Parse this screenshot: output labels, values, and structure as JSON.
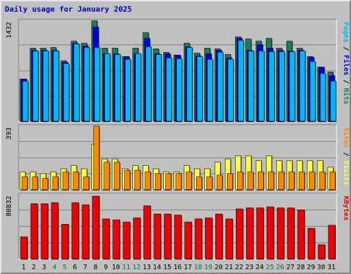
{
  "title": "Daily usage for January 2025",
  "colors": {
    "hits": "#1b7c5f",
    "files": "#0000e0",
    "pages": "#00b8f8",
    "visits": "#ffff40",
    "sites": "#ff8800",
    "kbytes": "#ee0000",
    "weekend_label": "#107040",
    "weekday_label": "#000000",
    "separator": "#000000"
  },
  "chart_data": [
    {
      "type": "bar",
      "name": "hits-files-pages",
      "ymax_label": "1432",
      "ylim": [
        0,
        1432
      ],
      "side_labels": [
        {
          "text": "Pages",
          "color": "#00b8f8"
        },
        {
          "text": " / ",
          "color": "#000000"
        },
        {
          "text": "Files",
          "color": "#0000e0"
        },
        {
          "text": " / ",
          "color": "#000000"
        },
        {
          "text": "Hits",
          "color": "#1b7c5f"
        }
      ],
      "categories": [
        "1",
        "2",
        "3",
        "4",
        "5",
        "6",
        "7",
        "8",
        "9",
        "10",
        "11",
        "12",
        "13",
        "14",
        "15",
        "16",
        "17",
        "18",
        "19",
        "20",
        "21",
        "22",
        "23",
        "24",
        "25",
        "26",
        "27",
        "28",
        "29",
        "30",
        "31"
      ],
      "series": [
        {
          "name": "Hits",
          "values": [
            600,
            1040,
            1040,
            1050,
            860,
            1140,
            1110,
            1430,
            1040,
            1040,
            920,
            1040,
            1260,
            1030,
            980,
            940,
            1110,
            970,
            1040,
            1030,
            950,
            1200,
            1170,
            1140,
            1180,
            1040,
            1140,
            1040,
            920,
            770,
            700
          ]
        },
        {
          "name": "Files",
          "values": [
            600,
            1010,
            1010,
            1010,
            840,
            1110,
            1070,
            1340,
            960,
            960,
            920,
            960,
            1180,
            960,
            960,
            940,
            1060,
            930,
            960,
            1010,
            900,
            1180,
            1010,
            1090,
            1040,
            1010,
            1000,
            1010,
            910,
            770,
            650
          ]
        },
        {
          "name": "Pages",
          "values": [
            570,
            1000,
            1000,
            1000,
            820,
            1100,
            1050,
            1050,
            960,
            950,
            880,
            960,
            1060,
            950,
            900,
            890,
            1050,
            920,
            880,
            980,
            880,
            1150,
            1000,
            1000,
            990,
            990,
            990,
            1000,
            850,
            680,
            570
          ]
        }
      ]
    },
    {
      "type": "bar",
      "name": "visits-sites",
      "ymax_label": "393",
      "ylim": [
        0,
        393
      ],
      "side_labels": [
        {
          "text": "Sites",
          "color": "#ff8800"
        },
        {
          "text": " / ",
          "color": "#000000"
        },
        {
          "text": "Visits",
          "color": "#ffff40"
        }
      ],
      "categories": [
        "1",
        "2",
        "3",
        "4",
        "5",
        "6",
        "7",
        "8",
        "9",
        "10",
        "11",
        "12",
        "13",
        "14",
        "15",
        "16",
        "17",
        "18",
        "19",
        "20",
        "21",
        "22",
        "23",
        "24",
        "25",
        "26",
        "27",
        "28",
        "29",
        "30",
        "31"
      ],
      "series": [
        {
          "name": "Visits",
          "values": [
            110,
            110,
            100,
            110,
            130,
            150,
            130,
            280,
            190,
            190,
            130,
            150,
            150,
            130,
            110,
            110,
            150,
            130,
            130,
            170,
            190,
            210,
            210,
            180,
            210,
            180,
            180,
            180,
            180,
            180,
            140
          ]
        },
        {
          "name": "Sites",
          "values": [
            80,
            80,
            70,
            80,
            110,
            110,
            80,
            393,
            170,
            170,
            120,
            120,
            110,
            100,
            100,
            100,
            110,
            80,
            80,
            90,
            100,
            110,
            110,
            110,
            110,
            110,
            110,
            110,
            110,
            110,
            110
          ]
        }
      ]
    },
    {
      "type": "bar",
      "name": "kbytes",
      "ymax_label": "80832",
      "ylim": [
        0,
        80832
      ],
      "side_labels": [
        {
          "text": "KBytes",
          "color": "#ee0000"
        }
      ],
      "categories": [
        "1",
        "2",
        "3",
        "4",
        "5",
        "6",
        "7",
        "8",
        "9",
        "10",
        "11",
        "12",
        "13",
        "14",
        "15",
        "16",
        "17",
        "18",
        "19",
        "20",
        "21",
        "22",
        "23",
        "24",
        "25",
        "26",
        "27",
        "28",
        "29",
        "30",
        "31"
      ],
      "series": [
        {
          "name": "KBytes",
          "values": [
            27700,
            69300,
            69300,
            70600,
            43600,
            70600,
            68000,
            78800,
            50300,
            49000,
            46400,
            51600,
            66700,
            56400,
            56400,
            55100,
            46400,
            50300,
            51600,
            56400,
            50300,
            62800,
            64100,
            64100,
            65400,
            64100,
            64100,
            61500,
            38500,
            17900,
            42300
          ]
        }
      ]
    }
  ],
  "x_labels": [
    {
      "text": "1",
      "weekend": false
    },
    {
      "text": "2",
      "weekend": false
    },
    {
      "text": "3",
      "weekend": false
    },
    {
      "text": "4",
      "weekend": true
    },
    {
      "text": "5",
      "weekend": true
    },
    {
      "text": "6",
      "weekend": false
    },
    {
      "text": "7",
      "weekend": false
    },
    {
      "text": "8",
      "weekend": false
    },
    {
      "text": "9",
      "weekend": false
    },
    {
      "text": "10",
      "weekend": false
    },
    {
      "text": "11",
      "weekend": true
    },
    {
      "text": "12",
      "weekend": true
    },
    {
      "text": "13",
      "weekend": false
    },
    {
      "text": "14",
      "weekend": false
    },
    {
      "text": "15",
      "weekend": false
    },
    {
      "text": "16",
      "weekend": false
    },
    {
      "text": "17",
      "weekend": false
    },
    {
      "text": "18",
      "weekend": true
    },
    {
      "text": "19",
      "weekend": true
    },
    {
      "text": "20",
      "weekend": false
    },
    {
      "text": "21",
      "weekend": false
    },
    {
      "text": "22",
      "weekend": false
    },
    {
      "text": "23",
      "weekend": false
    },
    {
      "text": "24",
      "weekend": false
    },
    {
      "text": "25",
      "weekend": true
    },
    {
      "text": "26",
      "weekend": true
    },
    {
      "text": "27",
      "weekend": false
    },
    {
      "text": "28",
      "weekend": false
    },
    {
      "text": "29",
      "weekend": false
    },
    {
      "text": "30",
      "weekend": false
    },
    {
      "text": "31",
      "weekend": false
    }
  ]
}
